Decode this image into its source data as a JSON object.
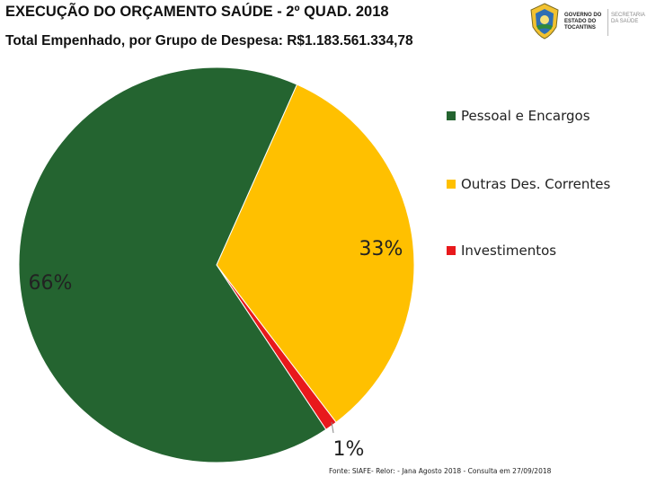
{
  "header": {
    "title": "EXECUÇÃO DO ORÇAMENTO SAÚDE - 2º QUAD. 2018",
    "subtitle": "Total Empenhado, por Grupo de Despesa: R$1.183.561.334,78"
  },
  "logo": {
    "government_lines": [
      "GOVERNO DO",
      "ESTADO DO",
      "TOCANTINS"
    ],
    "secretariat_lines": [
      "SECRETARIA",
      "DA SAÚDE"
    ],
    "seal_icon": "state-seal-icon"
  },
  "source_note": "Fonte: SIAFE- Relor: - Jana Agosto 2018 - Consulta em 27/09/2018",
  "chart_data": {
    "type": "pie",
    "title": "",
    "categories": [
      "Pessoal e Encargos",
      "Outras Des. Correntes",
      "Investimentos"
    ],
    "values": [
      66,
      33,
      1
    ],
    "data_labels": [
      "66%",
      "33%",
      "1%"
    ],
    "colors": [
      "#246430",
      "#FFC000",
      "#E8191C"
    ],
    "legend_position": "right"
  }
}
